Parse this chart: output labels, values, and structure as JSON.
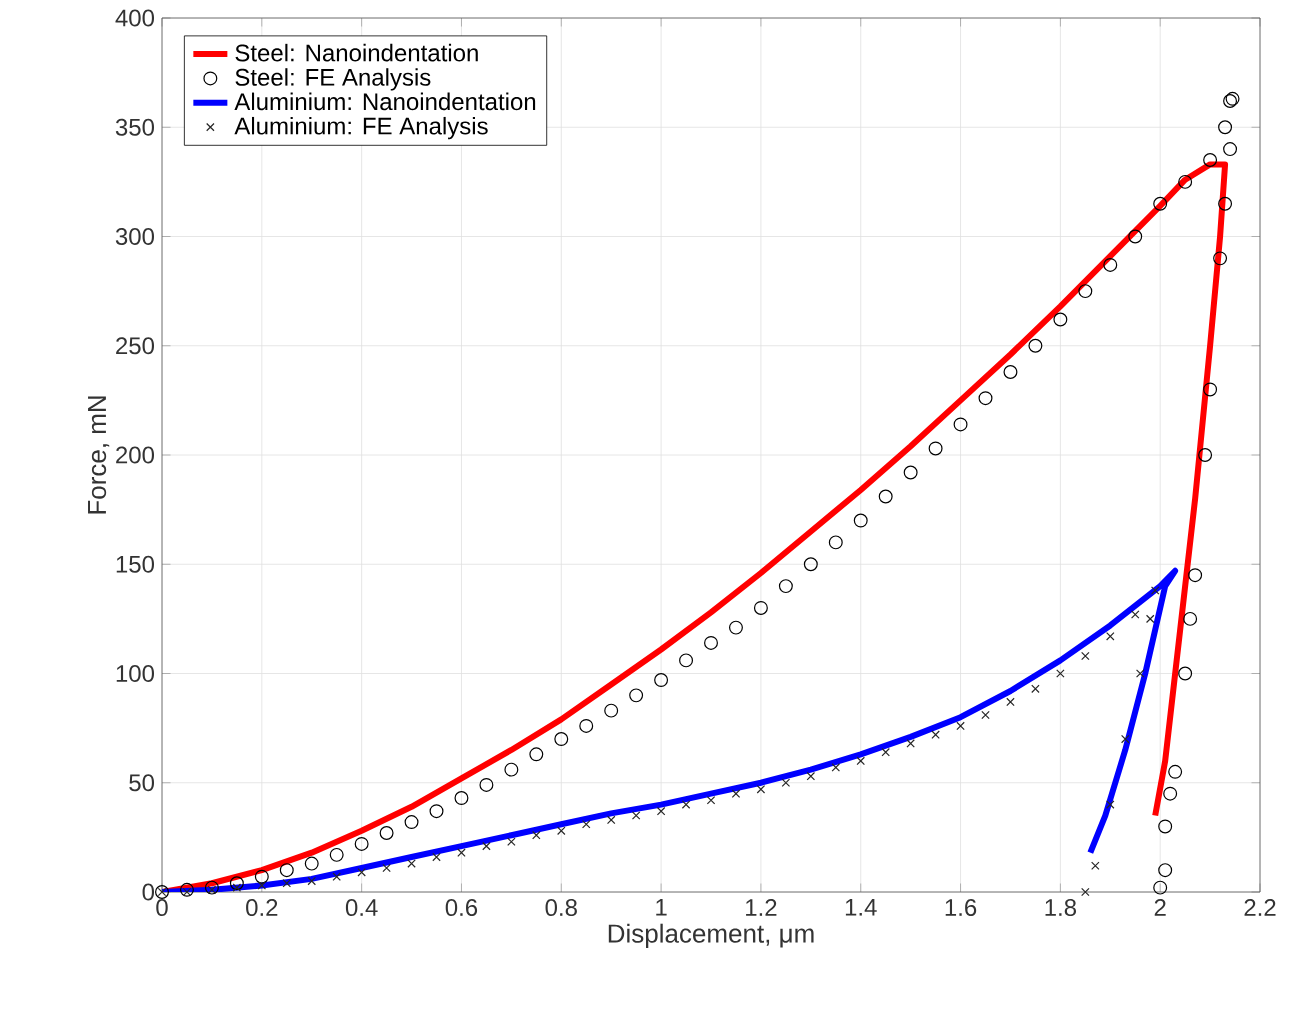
{
  "chart_data": {
    "type": "line",
    "xlabel": "Displacement, μm",
    "ylabel": "Force, mN",
    "xlim": [
      0,
      2.2
    ],
    "ylim": [
      0,
      400
    ],
    "xticks": [
      0,
      0.2,
      0.4,
      0.6,
      0.8,
      1,
      1.2,
      1.4,
      1.6,
      1.8,
      2,
      2.2
    ],
    "yticks": [
      0,
      50,
      100,
      150,
      200,
      250,
      300,
      350,
      400
    ],
    "grid": true,
    "legend": "top left",
    "series": [
      {
        "name": "Steel: Nanoindentation",
        "type": "line",
        "marker": "none",
        "color": "#ff0000",
        "x": [
          0,
          0.1,
          0.2,
          0.3,
          0.4,
          0.5,
          0.6,
          0.7,
          0.8,
          0.9,
          1.0,
          1.1,
          1.2,
          1.3,
          1.4,
          1.5,
          1.6,
          1.7,
          1.8,
          1.9,
          2.0,
          2.05,
          2.1,
          2.13,
          2.12,
          2.1,
          2.07,
          2.04,
          2.01,
          1.99
        ],
        "values": [
          0,
          4,
          10,
          18,
          28,
          39,
          52,
          65,
          79,
          95,
          111,
          128,
          146,
          165,
          184,
          204,
          225,
          246,
          268,
          291,
          314,
          326,
          333,
          333,
          300,
          250,
          180,
          120,
          60,
          35
        ]
      },
      {
        "name": "Steel: FE Analysis",
        "type": "scatter",
        "marker": "circle",
        "color": "#000000",
        "x": [
          0,
          0.05,
          0.1,
          0.15,
          0.2,
          0.25,
          0.3,
          0.35,
          0.4,
          0.45,
          0.5,
          0.55,
          0.6,
          0.65,
          0.7,
          0.75,
          0.8,
          0.85,
          0.9,
          0.95,
          1.0,
          1.05,
          1.1,
          1.15,
          1.2,
          1.25,
          1.3,
          1.35,
          1.4,
          1.45,
          1.5,
          1.55,
          1.6,
          1.65,
          1.7,
          1.75,
          1.8,
          1.85,
          1.9,
          1.95,
          2.0,
          2.05,
          2.1,
          2.13,
          2.14,
          2.145,
          2.14,
          2.13,
          2.12,
          2.1,
          2.09,
          2.07,
          2.06,
          2.05,
          2.03,
          2.02,
          2.01,
          2.01,
          2.0
        ],
        "values": [
          0,
          1,
          2,
          4,
          7,
          10,
          13,
          17,
          22,
          27,
          32,
          37,
          43,
          49,
          56,
          63,
          70,
          76,
          83,
          90,
          97,
          106,
          114,
          121,
          130,
          140,
          150,
          160,
          170,
          181,
          192,
          203,
          214,
          226,
          238,
          250,
          262,
          275,
          287,
          300,
          315,
          325,
          335,
          350,
          362,
          363,
          340,
          315,
          290,
          230,
          200,
          145,
          125,
          100,
          55,
          45,
          30,
          10,
          2
        ]
      },
      {
        "name": "Aluminium: Nanoindentation",
        "type": "line",
        "marker": "none",
        "color": "#0000ff",
        "x": [
          0,
          0.1,
          0.2,
          0.3,
          0.4,
          0.5,
          0.6,
          0.7,
          0.8,
          0.9,
          1.0,
          1.1,
          1.2,
          1.3,
          1.4,
          1.5,
          1.6,
          1.7,
          1.8,
          1.9,
          2.0,
          2.03,
          2.01,
          1.97,
          1.93,
          1.89,
          1.86
        ],
        "values": [
          0,
          1,
          3,
          6,
          11,
          16,
          21,
          26,
          31,
          36,
          40,
          45,
          50,
          56,
          63,
          71,
          80,
          92,
          106,
          122,
          140,
          147,
          140,
          100,
          65,
          35,
          18
        ]
      },
      {
        "name": "Aluminium: FE Analysis",
        "type": "scatter",
        "marker": "cross",
        "color": "#262626",
        "x": [
          0,
          0.05,
          0.1,
          0.15,
          0.2,
          0.25,
          0.3,
          0.35,
          0.4,
          0.45,
          0.5,
          0.55,
          0.6,
          0.65,
          0.7,
          0.75,
          0.8,
          0.85,
          0.9,
          0.95,
          1.0,
          1.05,
          1.1,
          1.15,
          1.2,
          1.25,
          1.3,
          1.35,
          1.4,
          1.45,
          1.5,
          1.55,
          1.6,
          1.65,
          1.7,
          1.75,
          1.8,
          1.85,
          1.9,
          1.95,
          1.99,
          1.98,
          1.96,
          1.93,
          1.9,
          1.87,
          1.85
        ],
        "values": [
          0,
          0,
          1,
          2,
          3,
          4,
          5,
          7,
          9,
          11,
          13,
          16,
          18,
          21,
          23,
          26,
          28,
          31,
          33,
          35,
          37,
          40,
          42,
          45,
          47,
          50,
          53,
          57,
          60,
          64,
          68,
          72,
          76,
          81,
          87,
          93,
          100,
          108,
          117,
          127,
          138,
          125,
          100,
          70,
          40,
          12,
          0
        ]
      }
    ]
  }
}
